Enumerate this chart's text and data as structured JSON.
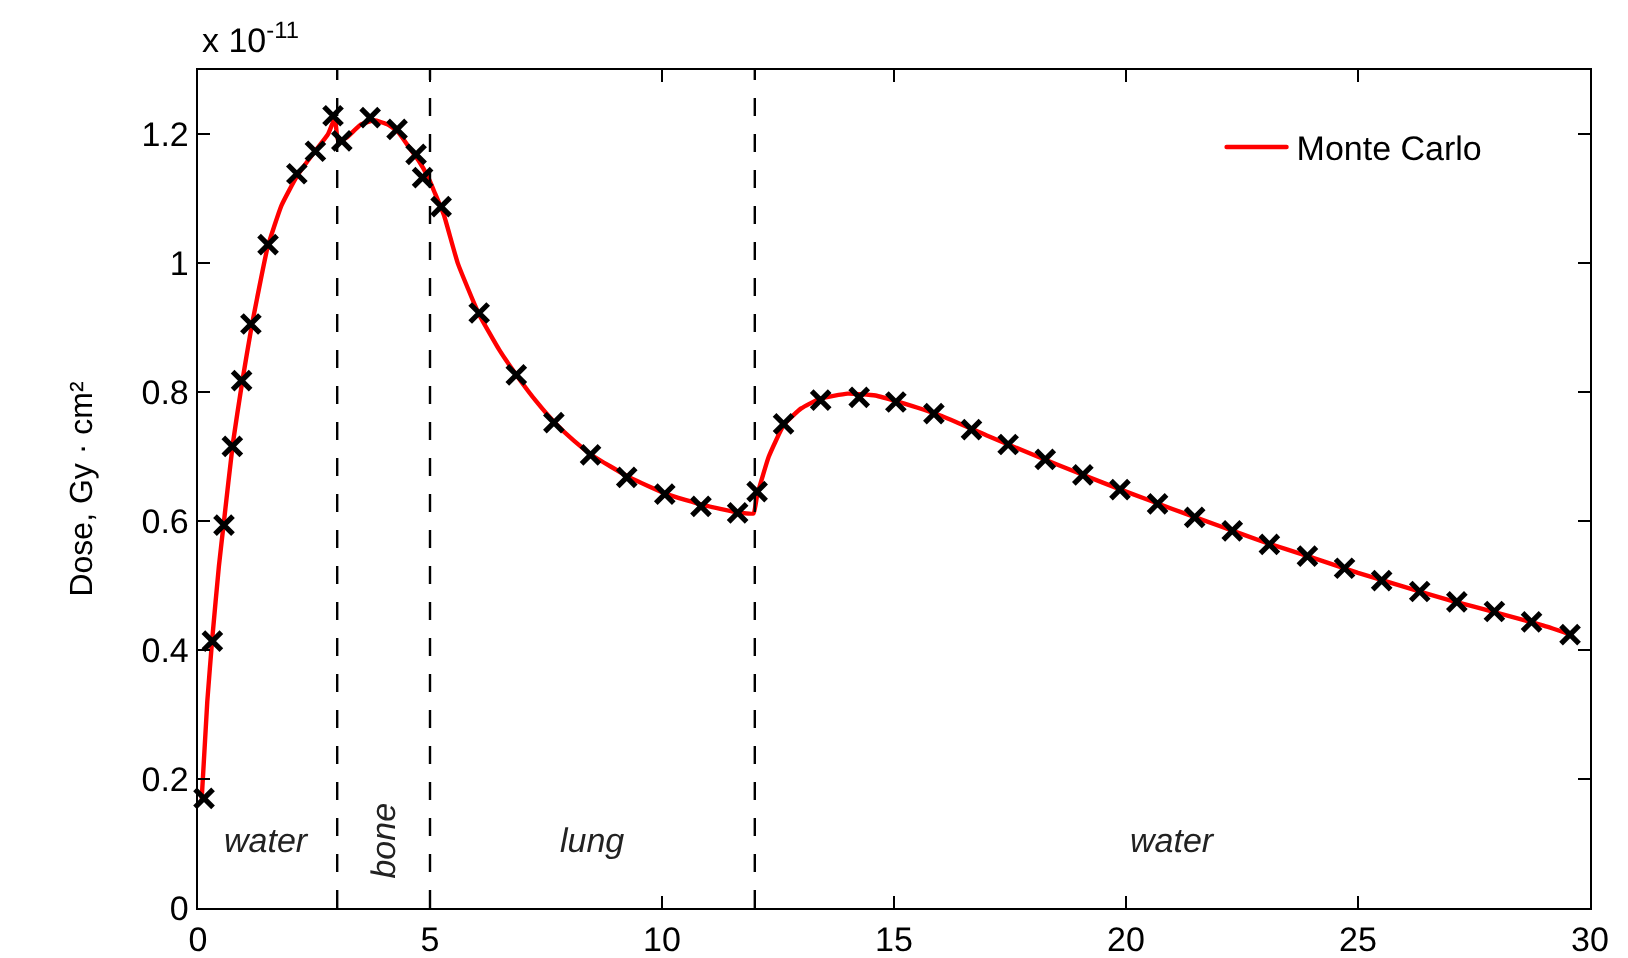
{
  "chart_data": {
    "type": "line",
    "ylabel": "Dose, Gy · cm²",
    "xlim": [
      0,
      30
    ],
    "xticks": [
      0,
      5,
      10,
      15,
      20,
      25,
      30
    ],
    "ylim": [
      0,
      1.3
    ],
    "yticks": [
      0,
      0.2,
      0.4,
      0.6,
      0.8,
      1,
      1.2
    ],
    "legend": "top right",
    "ref_lines": [
      {
        "axis": "x",
        "value": 3,
        "color": "#000000",
        "line_style": "dashed"
      },
      {
        "axis": "x",
        "value": 5,
        "color": "#000000",
        "line_style": "dashed"
      },
      {
        "axis": "x",
        "value": 12,
        "color": "#000000",
        "line_style": "dashed"
      }
    ],
    "annotations": [
      "x 10$^{-11}$",
      "water",
      "bone",
      "lung",
      "water"
    ],
    "series": [
      {
        "name": "Monte Carlo",
        "type": "line",
        "color": "#ff0000",
        "x": [
          0.08,
          0.2,
          0.31,
          0.45,
          0.56,
          0.75,
          0.95,
          1.15,
          1.5,
          1.8,
          2.13,
          2.5,
          2.8,
          2.95,
          3.02,
          3.2,
          3.5,
          3.8,
          4.1,
          4.3,
          4.55,
          4.75,
          4.95,
          5.1,
          5.3,
          5.6,
          6.05,
          6.5,
          6.9,
          7.3,
          7.7,
          8.1,
          8.5,
          9.3,
          10.1,
          10.9,
          11.6,
          11.97,
          12.05,
          12.3,
          12.63,
          13.0,
          13.4,
          14.0,
          14.6,
          15.1,
          16.0,
          17.0,
          18.0,
          19.0,
          20.0,
          21.0,
          22.0,
          23.0,
          24.0,
          25.0,
          26.0,
          27.0,
          28.0,
          29.0,
          29.6
        ],
        "values": [
          0.17,
          0.32,
          0.42,
          0.53,
          0.6,
          0.72,
          0.815,
          0.9,
          1.025,
          1.09,
          1.135,
          1.172,
          1.2,
          1.225,
          1.19,
          1.195,
          1.215,
          1.222,
          1.215,
          1.205,
          1.18,
          1.16,
          1.135,
          1.11,
          1.075,
          1.0,
          0.922,
          0.865,
          0.823,
          0.785,
          0.752,
          0.725,
          0.702,
          0.668,
          0.642,
          0.625,
          0.614,
          0.612,
          0.64,
          0.7,
          0.75,
          0.775,
          0.79,
          0.798,
          0.795,
          0.785,
          0.764,
          0.733,
          0.703,
          0.674,
          0.646,
          0.619,
          0.593,
          0.567,
          0.544,
          0.52,
          0.498,
          0.477,
          0.458,
          0.438,
          0.424
        ]
      },
      {
        "type": "scatter",
        "color": "#000000",
        "marker": "cross",
        "x": [
          0.13,
          0.31,
          0.56,
          0.74,
          0.94,
          1.14,
          1.51,
          2.13,
          2.53,
          2.91,
          3.1,
          3.71,
          4.29,
          4.7,
          4.84,
          5.24,
          6.06,
          6.86,
          7.67,
          8.46,
          9.24,
          10.06,
          10.84,
          11.63,
          12.05,
          12.62,
          13.42,
          14.25,
          15.04,
          15.86,
          16.67,
          17.46,
          18.26,
          19.07,
          19.87,
          20.68,
          21.48,
          22.29,
          23.09,
          23.91,
          24.71,
          25.51,
          26.33,
          27.13,
          27.94,
          28.74,
          29.57
        ],
        "values": [
          0.17,
          0.414,
          0.594,
          0.716,
          0.818,
          0.906,
          1.029,
          1.139,
          1.174,
          1.229,
          1.19,
          1.226,
          1.208,
          1.169,
          1.133,
          1.088,
          0.923,
          0.827,
          0.753,
          0.703,
          0.668,
          0.642,
          0.623,
          0.613,
          0.646,
          0.751,
          0.788,
          0.792,
          0.785,
          0.767,
          0.742,
          0.719,
          0.696,
          0.672,
          0.649,
          0.627,
          0.606,
          0.585,
          0.564,
          0.546,
          0.527,
          0.508,
          0.491,
          0.475,
          0.46,
          0.444,
          0.424
        ]
      }
    ]
  }
}
